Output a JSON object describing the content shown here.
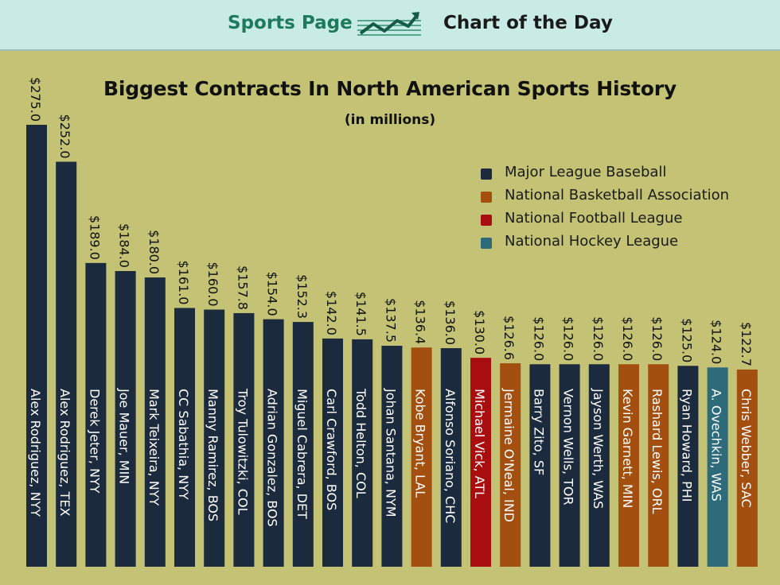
{
  "header": {
    "left_label": "Sports Page",
    "right_label": "Chart of the Day",
    "icon": "trend-chart-icon"
  },
  "colors": {
    "background": "#c4c274",
    "banner": "#c9ebe6",
    "accent": "#1d7a5d"
  },
  "chart_data": {
    "type": "bar",
    "title": "Biggest Contracts In North American Sports History",
    "subtitle": "(in millions)",
    "legend_position": "top-right",
    "grid": false,
    "ylim": [
      0,
      275
    ],
    "legend": [
      {
        "league": "MLB",
        "name": "Major League Baseball",
        "color": "#1b2a3c"
      },
      {
        "league": "NBA",
        "name": "National Basketball Association",
        "color": "#a24f0f"
      },
      {
        "league": "NFL",
        "name": "National Football League",
        "color": "#a80d10"
      },
      {
        "league": "NHL",
        "name": "National Hockey League",
        "color": "#2d6a7a"
      }
    ],
    "categories": [
      "Alex Rodriguez, NYY",
      "Alex Rodriguez, TEX",
      "Derek Jeter, NYY",
      "Joe Mauer, MIN",
      "Mark Teixeira, NYY",
      "CC Sabathia, NYY",
      "Manny Ramirez, BOS",
      "Troy Tulowitzki, COL",
      "Adrian Gonzalez, BOS",
      "Miguel Cabrera, DET",
      "Carl Crawford, BOS",
      "Todd Helton, COL",
      "Johan Santana, NYM",
      "Kobe Bryant, LAL",
      "Alfonso Soriano, CHC",
      "Michael Vick, ATL",
      "Jermaine O'Neal, IND",
      "Barry Zito, SF",
      "Vernon Wells, TOR",
      "Jayson Werth, WAS",
      "Kevin Garnett, MIN",
      "Rashard Lewis, ORL",
      "Ryan Howard, PHI",
      "A. Ovechkin, WAS",
      "Chris Webber, SAC"
    ],
    "values": [
      275.0,
      252.0,
      189.0,
      184.0,
      180.0,
      161.0,
      160.0,
      157.8,
      154.0,
      152.3,
      142.0,
      141.5,
      137.5,
      136.4,
      136.0,
      130.0,
      126.6,
      126.0,
      126.0,
      126.0,
      126.0,
      126.0,
      125.0,
      124.0,
      122.7
    ],
    "value_labels": [
      "$275.0",
      "$252.0",
      "$189.0",
      "$184.0",
      "$180.0",
      "$161.0",
      "$160.0",
      "$157.8",
      "$154.0",
      "$152.3",
      "$142.0",
      "$141.5",
      "$137.5",
      "$136.4",
      "$136.0",
      "$130.0",
      "$126.6",
      "$126.0",
      "$126.0",
      "$126.0",
      "$126.0",
      "$126.0",
      "$125.0",
      "$124.0",
      "$122.7"
    ],
    "leagues": [
      "MLB",
      "MLB",
      "MLB",
      "MLB",
      "MLB",
      "MLB",
      "MLB",
      "MLB",
      "MLB",
      "MLB",
      "MLB",
      "MLB",
      "MLB",
      "NBA",
      "MLB",
      "NFL",
      "NBA",
      "MLB",
      "MLB",
      "MLB",
      "NBA",
      "NBA",
      "MLB",
      "NHL",
      "NBA"
    ]
  }
}
